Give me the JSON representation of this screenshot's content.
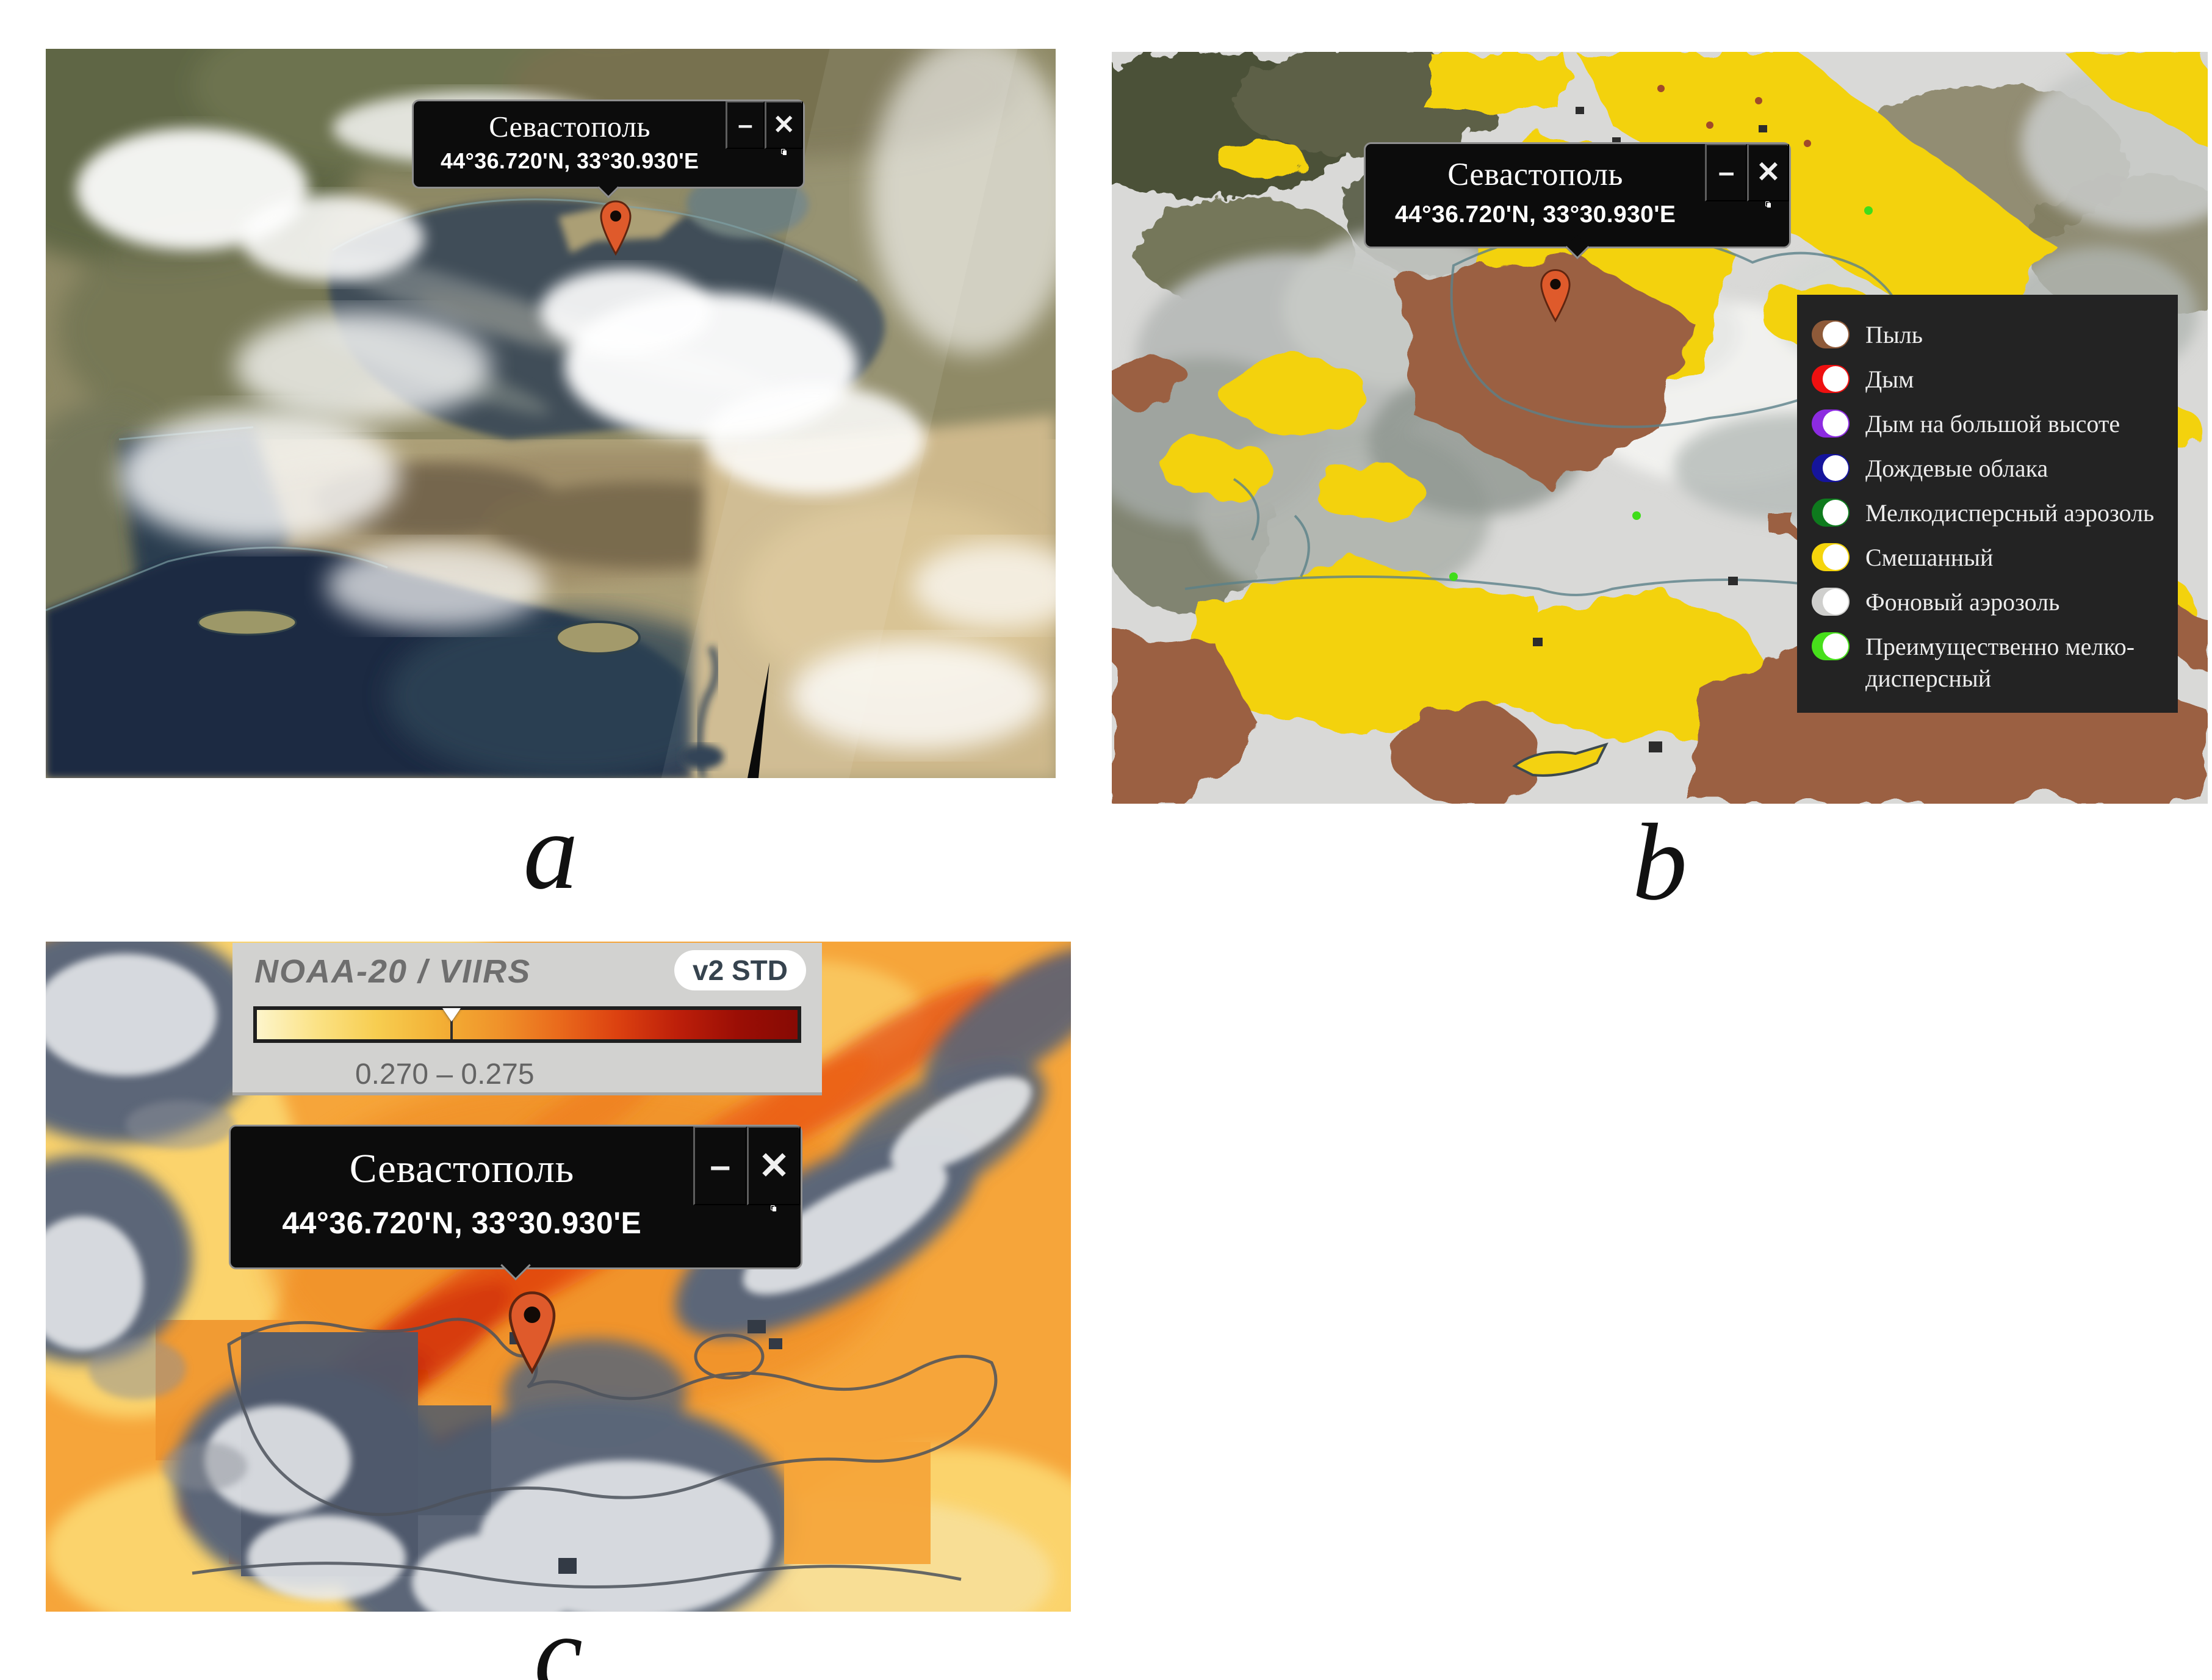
{
  "figure": {
    "captions": {
      "a": "a",
      "b": "b",
      "c": "c"
    }
  },
  "popup": {
    "title": "Севастополь",
    "coordinates": "44°36.720'N, 33°30.930'E",
    "minimize_glyph": "–",
    "close_glyph": "✕"
  },
  "marker": {
    "color": "#df5a2b"
  },
  "legend_b": {
    "items": [
      {
        "label": "Пыль",
        "color": "#8e5a39"
      },
      {
        "label": "Дым",
        "color": "#ee1010"
      },
      {
        "label": "Дым на большой высоте",
        "color": "#8c2be0"
      },
      {
        "label": "Дождевые облака",
        "color": "#15149b"
      },
      {
        "label": "Мелкодисперсный аэрозоль",
        "color": "#0e7a1d"
      },
      {
        "label": "Смешанный",
        "color": "#f5d50c"
      },
      {
        "label": "Фоновый аэрозоль",
        "color": "#cfcfcd"
      },
      {
        "label": "Преимущественно мелко-дисперсный",
        "color": "#47df1b"
      }
    ]
  },
  "colorbar_c": {
    "instrument": "NOAA-20 / VIIRS",
    "version_badge": "v2 STD",
    "range_label": "0.270 – 0.275",
    "marker_position_pct": 36,
    "gradient_stops": [
      "#fdf5cb",
      "#fbe285",
      "#f7cd50",
      "#f3b136",
      "#f0932a",
      "#ea6b1c",
      "#dc4110",
      "#bd1f0a",
      "#9b0e05",
      "#870a04"
    ]
  }
}
